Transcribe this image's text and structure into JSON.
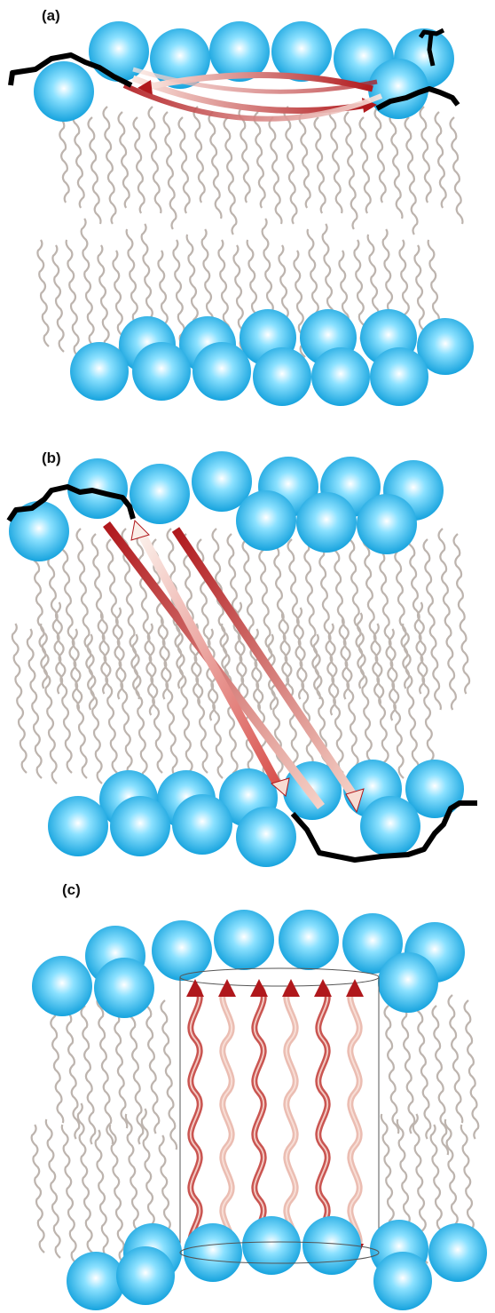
{
  "panels": [
    {
      "label": "(a)"
    },
    {
      "label": "(b)"
    },
    {
      "label": "(c)"
    }
  ],
  "colors": {
    "head_center": "#ffffff",
    "head_mid": "#7fdcff",
    "head_edge": "#1aa6e0",
    "tail": "#bdb4ae",
    "arrow_dark": "#b0181c",
    "arrow_light": "#fbe7e0",
    "peptide_chain": "#000000",
    "cylinder": "#555555"
  }
}
